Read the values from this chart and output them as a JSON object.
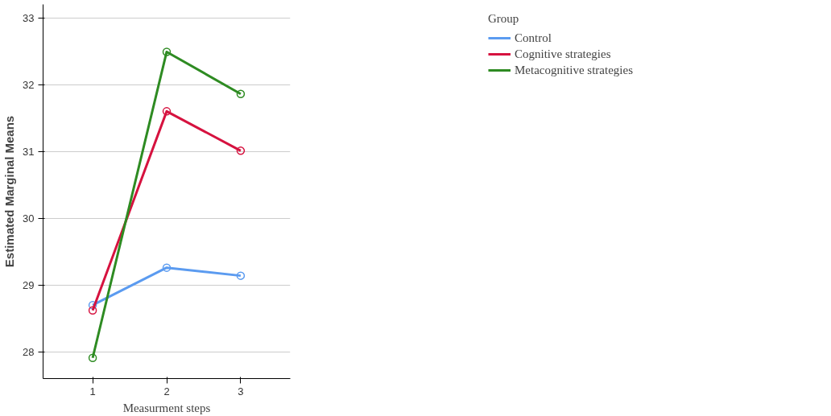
{
  "chart_data": {
    "type": "line",
    "xlabel": "Measurment steps",
    "ylabel": "Estimated Marginal Means",
    "legend_title": "Group",
    "x": [
      1,
      2,
      3
    ],
    "xlim": [
      0.33,
      3.67
    ],
    "xticks": [
      1,
      2,
      3
    ],
    "ylim": [
      27.6,
      33.2
    ],
    "yticks": [
      28,
      29,
      30,
      31,
      32,
      33
    ],
    "series": [
      {
        "name": "Control",
        "color": "#5b9bf0",
        "values": [
          28.7,
          29.26,
          29.14
        ]
      },
      {
        "name": "Cognitive strategies",
        "color": "#d6123f",
        "values": [
          28.62,
          31.6,
          31.01
        ]
      },
      {
        "name": "Metacognitive strategies",
        "color": "#2e8b22",
        "values": [
          27.91,
          32.49,
          31.86
        ]
      }
    ],
    "marker": "circle",
    "grid": "y",
    "legend": "top right"
  }
}
